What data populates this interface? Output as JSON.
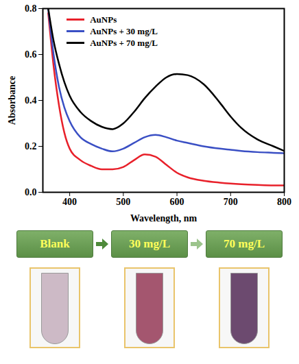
{
  "chart_data": {
    "type": "line",
    "x_label": "Wavelength, nm",
    "y_label": "Absorbance",
    "x": [
      360,
      370,
      380,
      390,
      400,
      420,
      440,
      460,
      480,
      500,
      520,
      540,
      560,
      580,
      600,
      620,
      650,
      680,
      700,
      720,
      750,
      780,
      800
    ],
    "series": [
      {
        "name": "AuNPs",
        "color": "#e8202a",
        "values": [
          0.78,
          0.55,
          0.38,
          0.26,
          0.19,
          0.14,
          0.115,
          0.1,
          0.1,
          0.11,
          0.14,
          0.165,
          0.155,
          0.12,
          0.085,
          0.065,
          0.05,
          0.042,
          0.038,
          0.035,
          0.032,
          0.03,
          0.03
        ]
      },
      {
        "name": "AuNPs + 30 mg/L",
        "color": "#3a4fc4",
        "values": [
          0.8,
          0.6,
          0.46,
          0.37,
          0.31,
          0.24,
          0.21,
          0.19,
          0.178,
          0.19,
          0.215,
          0.24,
          0.25,
          0.24,
          0.225,
          0.215,
          0.2,
          0.19,
          0.185,
          0.18,
          0.175,
          0.172,
          0.17
        ]
      },
      {
        "name": "AuNPs + 70 mg/L",
        "color": "#000000",
        "values": [
          0.8,
          0.66,
          0.56,
          0.48,
          0.42,
          0.35,
          0.31,
          0.285,
          0.275,
          0.3,
          0.35,
          0.41,
          0.46,
          0.5,
          0.515,
          0.51,
          0.47,
          0.39,
          0.33,
          0.28,
          0.23,
          0.2,
          0.18
        ]
      }
    ],
    "xlim": [
      350,
      800
    ],
    "ylim": [
      0,
      0.8
    ],
    "xticks": [
      400,
      500,
      600,
      700,
      800
    ],
    "yticks": [
      {
        "value": 0,
        "label": "0.0"
      },
      {
        "value": 0.2,
        "label": "0.2"
      },
      {
        "value": 0.4,
        "label": "0.4"
      },
      {
        "value": 0.6,
        "label": "0.6"
      },
      {
        "value": 0.8,
        "label": "0.8"
      }
    ],
    "legend": "top-left",
    "grid": false
  },
  "steps": [
    {
      "label": "Blank",
      "color": "#cdbac6"
    },
    {
      "label": "30 mg/L",
      "color": "#a4566f"
    },
    {
      "label": "70 mg/L",
      "color": "#6c4a6f"
    }
  ]
}
